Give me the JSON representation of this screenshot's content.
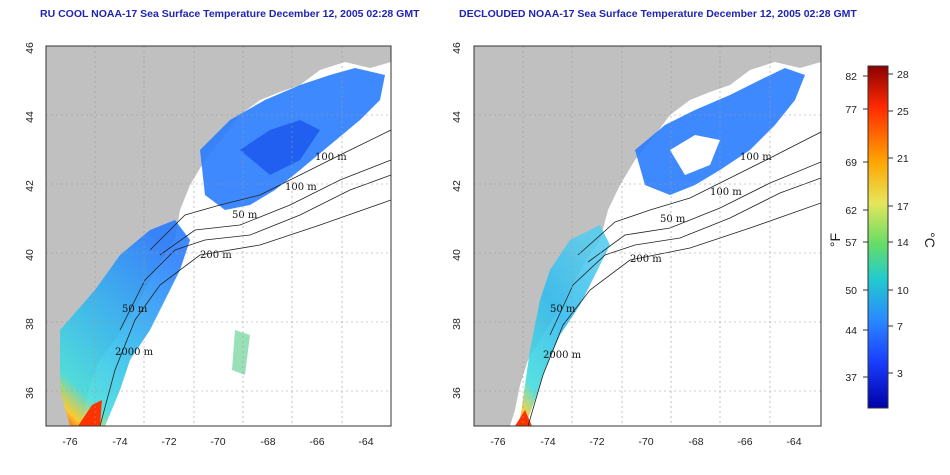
{
  "maps": [
    {
      "title": "RU COOL NOAA-17 Sea Surface Temperature December 12, 2005 02:28 GMT"
    },
    {
      "title": "DECLOUDED NOAA-17 Sea Surface Temperature December 12, 2005 02:28 GMT"
    }
  ],
  "axes": {
    "x_ticks": [
      "-76",
      "-74",
      "-72",
      "-70",
      "-68",
      "-66",
      "-64"
    ],
    "y_ticks": [
      "46",
      "44",
      "42",
      "40",
      "38",
      "36"
    ],
    "xlim": [
      -77,
      -63
    ],
    "ylim": [
      35,
      46
    ]
  },
  "contour_labels": [
    "100 m",
    "100 m",
    "50 m",
    "200 m",
    "50 m",
    "2000 m"
  ],
  "colorbar": {
    "f_ticks": [
      "82",
      "77",
      "69",
      "62",
      "57",
      "50",
      "44",
      "37"
    ],
    "c_ticks": [
      "28",
      "25",
      "21",
      "17",
      "14",
      "10",
      "7",
      "3"
    ],
    "f_unit": "°F",
    "c_unit": "°C",
    "colors": [
      "#8b0000",
      "#ff2a00",
      "#ffa500",
      "#e6e65a",
      "#66dd66",
      "#22cccc",
      "#2a8bff",
      "#1a40ff",
      "#0000aa"
    ]
  },
  "colors": {
    "land": "#c0c0c0",
    "ocean_clear": "#ffffff",
    "title": "#1f24b3"
  }
}
